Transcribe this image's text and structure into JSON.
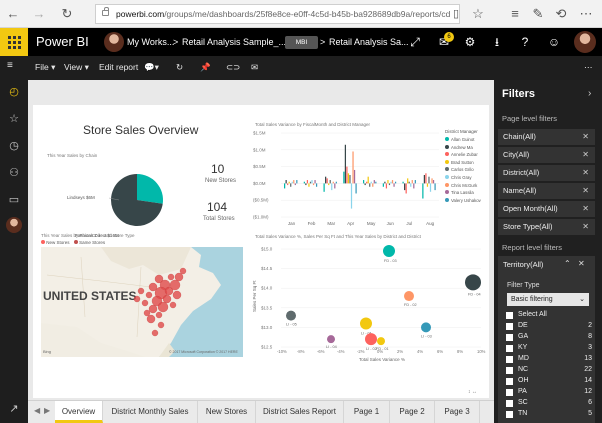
{
  "browser": {
    "address_domain": "powerbi.com",
    "address_path": "/groups/me/dashboards/25f8e8ce-e0ff-4c5d-b45b-ba928689db9a/reports/cd"
  },
  "app": {
    "brand": "Power BI",
    "breadcrumb_workspace": "My Works...",
    "breadcrumb_dashboard": "Retail Analysis Sample_...",
    "badge": "MBI",
    "breadcrumb_report": "Retail Analysis Sa...",
    "notification_count": "6"
  },
  "toolbar": {
    "file": "File",
    "view": "View",
    "edit": "Edit report"
  },
  "report": {
    "title": "Store Sales Overview",
    "pie_title": "This Year Sales by Chain",
    "pie_label_a": "Lindseys $6M",
    "pie_label_b": "Fashions Direct $16M",
    "kpi_new_value": "10",
    "kpi_new_label": "New Stores",
    "kpi_total_value": "104",
    "kpi_total_label": "Total Stores",
    "bar_title": "Total Sales Variance by FiscalMonth and District Manager",
    "bar_legend_title": "District Manager",
    "map_title": "This Year Sales by PostalCode and Store Type",
    "map_legend_new": "New Stores",
    "map_legend_same": "Same Stores",
    "map_country": "UNITED STATES",
    "map_credit": "© 2017 Microsoft Corporation  © 2017 HERE",
    "map_logo": "Bing",
    "scatter_title": "Total Sales Variance %, Sales Per Sq Ft and This Year Sales by District and District",
    "scatter_xlabel": "Total Sales Variance %",
    "scatter_ylabel": "Sales Per Sq Ft"
  },
  "chart_data": [
    {
      "type": "pie",
      "title": "This Year Sales by Chain",
      "categories": [
        "Lindseys",
        "Fashions Direct"
      ],
      "values": [
        6,
        16
      ],
      "colors": [
        "#01b8aa",
        "#374649"
      ]
    },
    {
      "type": "bar",
      "title": "Total Sales Variance by FiscalMonth and District Manager",
      "categories": [
        "Jan",
        "Feb",
        "Mar",
        "Apr",
        "May",
        "Jun",
        "Jul",
        "Aug"
      ],
      "yticks": [
        "$1.5M",
        "$1.0M",
        "$0.5M",
        "$0.0M",
        "($0.5M)",
        "($1.0M)"
      ],
      "ylim": [
        -1.0,
        1.5
      ],
      "legend_title": "District Manager",
      "series": [
        {
          "name": "Allan Guinot",
          "color": "#01b8aa",
          "values": [
            -0.15,
            0.05,
            -0.25,
            0.35,
            0.1,
            -0.1,
            0.05,
            -0.45
          ]
        },
        {
          "name": "Andrew Ma",
          "color": "#374649",
          "values": [
            0.1,
            -0.05,
            0.2,
            1.15,
            -0.05,
            0.05,
            -0.2,
            0.25
          ]
        },
        {
          "name": "Annelie Zubar",
          "color": "#fd625e",
          "values": [
            -0.05,
            0.1,
            0.15,
            0.5,
            0.05,
            -0.15,
            -0.3,
            0.3
          ]
        },
        {
          "name": "Brad Sutton",
          "color": "#f2c80f",
          "values": [
            0.05,
            -0.1,
            -0.05,
            0.3,
            0.2,
            0.1,
            0.15,
            -0.1
          ]
        },
        {
          "name": "Carlos Grilo",
          "color": "#5f6b6d",
          "values": [
            -0.1,
            0.05,
            0.1,
            0.25,
            -0.1,
            -0.05,
            0.05,
            0.2
          ]
        },
        {
          "name": "Chris Gray",
          "color": "#8ad4eb",
          "values": [
            0.05,
            0.1,
            -0.2,
            -0.75,
            0.05,
            0.05,
            -0.1,
            -0.25
          ]
        },
        {
          "name": "Chris McGurk",
          "color": "#fe9666",
          "values": [
            0.1,
            -0.05,
            0.05,
            0.95,
            -0.1,
            0.1,
            0.1,
            0.15
          ]
        },
        {
          "name": "Tina Lassila",
          "color": "#a66999",
          "values": [
            -0.05,
            0.1,
            -0.15,
            0.4,
            0.1,
            -0.1,
            -0.15,
            0.1
          ]
        },
        {
          "name": "Valery Ushakov",
          "color": "#3599b8",
          "values": [
            0.1,
            -0.1,
            0.05,
            -0.3,
            0.05,
            0.05,
            0.1,
            -0.2
          ]
        }
      ]
    },
    {
      "type": "scatter",
      "title": "Total Sales Variance %, Sales Per Sq Ft and This Year Sales by District and District",
      "xlabel": "Total Sales Variance %",
      "ylabel": "Sales Per Sq Ft",
      "xticks": [
        "-10%",
        "-8%",
        "-6%",
        "-4%",
        "-2%",
        "0%",
        "2%",
        "4%",
        "6%",
        "8%",
        "10%"
      ],
      "yticks": [
        "$15.0",
        "$14.5",
        "$14.0",
        "$13.5",
        "$13.0",
        "$12.5"
      ],
      "xlim": [
        -10,
        10
      ],
      "ylim": [
        12.5,
        15.0
      ],
      "points": [
        {
          "label": "FD - 03",
          "x": 0.8,
          "y": 14.95,
          "size": 6,
          "color": "#01b8aa"
        },
        {
          "label": "FD - 04",
          "x": 9.2,
          "y": 14.15,
          "size": 8,
          "color": "#374649"
        },
        {
          "label": "FD - 02",
          "x": 2.8,
          "y": 13.8,
          "size": 5,
          "color": "#fe9666"
        },
        {
          "label": "LI - 05",
          "x": -9.0,
          "y": 13.3,
          "size": 5,
          "color": "#5f6b6d"
        },
        {
          "label": "LI - 01",
          "x": -1.5,
          "y": 13.1,
          "size": 6,
          "color": "#f2c80f"
        },
        {
          "label": "LI - 03",
          "x": 4.5,
          "y": 13.0,
          "size": 5,
          "color": "#3599b8"
        },
        {
          "label": "LI - 04",
          "x": -5.0,
          "y": 12.7,
          "size": 4,
          "color": "#a66999"
        },
        {
          "label": "LI - 02",
          "x": -1.0,
          "y": 12.7,
          "size": 6,
          "color": "#fd625e"
        },
        {
          "label": "FD - 01",
          "x": 0.0,
          "y": 12.65,
          "size": 4,
          "color": "#f2c80f"
        }
      ]
    }
  ],
  "tabs": [
    "Overview",
    "District Monthly Sales",
    "New Stores",
    "District Sales Report",
    "Page 1",
    "Page 2",
    "Page 3"
  ],
  "filters": {
    "title": "Filters",
    "page_level": "Page level filters",
    "page_filters": [
      "Chain(All)",
      "City(All)",
      "District(All)",
      "Name(All)",
      "Open Month(All)",
      "Store Type(All)"
    ],
    "report_level": "Report level filters",
    "territory": "Territory(All)",
    "filter_type_label": "Filter Type",
    "filter_type_value": "Basic filtering",
    "select_all": "Select All",
    "items": [
      {
        "name": "DE",
        "count": "2"
      },
      {
        "name": "GA",
        "count": "8"
      },
      {
        "name": "KY",
        "count": "3"
      },
      {
        "name": "MD",
        "count": "13"
      },
      {
        "name": "NC",
        "count": "22"
      },
      {
        "name": "OH",
        "count": "14"
      },
      {
        "name": "PA",
        "count": "12"
      },
      {
        "name": "SC",
        "count": "6"
      },
      {
        "name": "TN",
        "count": "5"
      }
    ]
  }
}
